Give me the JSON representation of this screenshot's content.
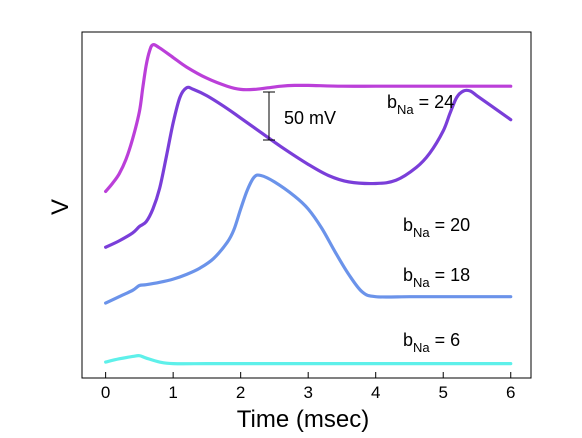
{
  "chart_data": {
    "type": "line",
    "xlabel": "Time (msec)",
    "ylabel": "V",
    "xlim": [
      -0.35,
      6.3
    ],
    "x_ticks": [
      "0",
      "1",
      "2",
      "3",
      "4",
      "5",
      "6"
    ],
    "y_ticks_shown": false,
    "grid": false,
    "scale_bar": {
      "label": "50 mV",
      "value_mV": 50
    },
    "series": [
      {
        "label_main": "b",
        "label_sub": "Na",
        "label_rest": " = 24",
        "color": "#bb3fd9",
        "x": [
          0,
          0.1,
          0.2,
          0.3,
          0.4,
          0.5,
          0.55,
          0.6,
          0.65,
          0.7,
          0.8,
          1.0,
          1.2,
          1.5,
          1.8,
          2.0,
          2.2,
          2.4,
          2.6,
          2.8,
          3.0,
          3.5,
          4.0,
          4.5,
          5.0,
          5.5,
          6.0
        ],
        "y": [
          -55,
          -50,
          -44,
          -35,
          -22,
          -5,
          10,
          24,
          33,
          37,
          35,
          29,
          23,
          16,
          11,
          9,
          9,
          10,
          11,
          11.5,
          11.5,
          11,
          11,
          11,
          11,
          11,
          11
        ]
      },
      {
        "label_main": "b",
        "label_sub": "Na",
        "label_rest": " = 20",
        "color": "#7a3ed9",
        "x": [
          0,
          0.2,
          0.4,
          0.5,
          0.6,
          0.7,
          0.8,
          0.9,
          1.0,
          1.1,
          1.2,
          1.3,
          1.5,
          1.8,
          2.0,
          2.3,
          2.6,
          3.0,
          3.3,
          3.6,
          4.0,
          4.3,
          4.6,
          4.8,
          5.0,
          5.1,
          5.2,
          5.3,
          5.4,
          5.5,
          5.7,
          6.0
        ],
        "y": [
          -90,
          -86,
          -81,
          -77,
          -74,
          -66,
          -53,
          -33,
          -12,
          4,
          10,
          9,
          5,
          -3,
          -9,
          -18,
          -27,
          -38,
          -45,
          -49,
          -50,
          -48,
          -40,
          -31,
          -17,
          -6,
          4,
          8,
          8,
          5,
          -1,
          -10
        ]
      },
      {
        "label_main": "b",
        "label_sub": "Na",
        "label_rest": " = 18",
        "color": "#6b93ea",
        "x": [
          0,
          0.2,
          0.4,
          0.5,
          0.6,
          0.8,
          1.0,
          1.2,
          1.4,
          1.6,
          1.8,
          1.9,
          2.0,
          2.1,
          2.2,
          2.3,
          2.5,
          2.8,
          3.0,
          3.2,
          3.4,
          3.6,
          3.8,
          4.0,
          4.5,
          5.0,
          6.0
        ],
        "y": [
          -125,
          -121,
          -117,
          -114,
          -113.5,
          -112,
          -110,
          -107,
          -103,
          -97,
          -87,
          -79,
          -66,
          -54,
          -46,
          -45,
          -49,
          -58,
          -66,
          -78,
          -93,
          -107,
          -118,
          -121,
          -121,
          -121,
          -121
        ]
      },
      {
        "label_main": "b",
        "label_sub": "Na",
        "label_rest": " = 6",
        "color": "#5ef0ea",
        "x": [
          0,
          0.2,
          0.4,
          0.5,
          0.6,
          0.8,
          1.0,
          1.5,
          2.0,
          3.0,
          4.0,
          5.0,
          6.0
        ],
        "y": [
          -162,
          -160,
          -158.5,
          -158,
          -159.5,
          -162,
          -163,
          -163,
          -163,
          -163,
          -163,
          -163,
          -163
        ]
      }
    ]
  }
}
